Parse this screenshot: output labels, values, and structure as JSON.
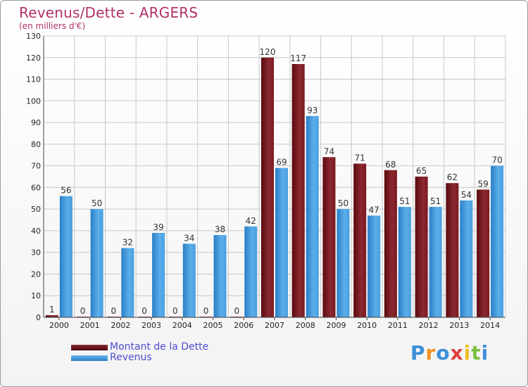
{
  "header": {
    "title": "Revenus/Dette - ARGERS",
    "subtitle": "(en milliers d'€)"
  },
  "legend": {
    "items": [
      {
        "label": "Montant de la Dette",
        "color": "#6b0e14"
      },
      {
        "label": "Revenus",
        "color": "#3f97dc"
      }
    ]
  },
  "logo": {
    "text": "Proxiti",
    "colors": [
      "#3c8fd8",
      "#f09020",
      "#3c8fd8",
      "#e04040",
      "#f0c020",
      "#80c040",
      "#3c8fd8"
    ]
  },
  "colors": {
    "debt_top": "#8a2a30",
    "debt_bottom": "#5a0a0e",
    "rev_top": "#5aaee8",
    "rev_bottom": "#2a7ec8",
    "grid": "#c8c8c8",
    "axis_text": "#222222",
    "value_text": "#333333"
  },
  "chart_data": {
    "type": "bar",
    "categories": [
      "2000",
      "2001",
      "2002",
      "2003",
      "2004",
      "2005",
      "2006",
      "2007",
      "2008",
      "2009",
      "2010",
      "2011",
      "2012",
      "2013",
      "2014"
    ],
    "series": [
      {
        "name": "Montant de la Dette",
        "values": [
          1,
          0,
          0,
          0,
          0,
          0,
          0,
          120,
          117,
          74,
          71,
          68,
          65,
          62,
          59
        ]
      },
      {
        "name": "Revenus",
        "values": [
          56,
          50,
          32,
          39,
          34,
          38,
          42,
          69,
          93,
          50,
          47,
          51,
          51,
          54,
          70
        ]
      }
    ],
    "ylim": [
      0,
      130
    ],
    "yticks": [
      0,
      10,
      20,
      30,
      40,
      50,
      60,
      70,
      80,
      90,
      100,
      110,
      120,
      130
    ],
    "grid": true,
    "legend_position": "bottom-left"
  }
}
